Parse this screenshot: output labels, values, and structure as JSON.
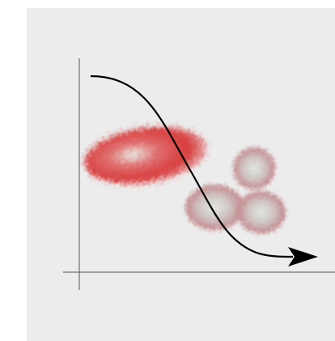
{
  "figure": {
    "background_color": "#ececec",
    "axis_color": "#555555",
    "curve_color": "#000000",
    "large_cell_color": "#d83a3a",
    "small_cell_color": "#c48a8e",
    "large_cells": 1,
    "small_cells": 3
  }
}
